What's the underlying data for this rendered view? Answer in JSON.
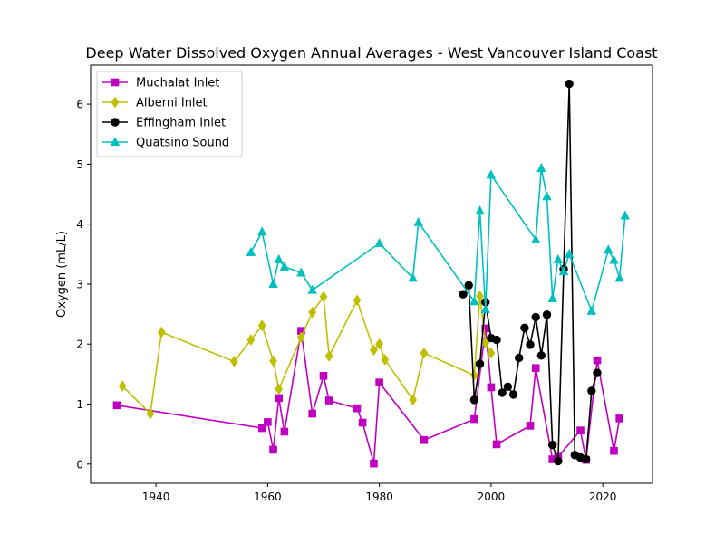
{
  "chart_data": {
    "type": "line",
    "title": "Deep Water Dissolved Oxygen Annual Averages - West Vancouver Island Coast",
    "xlabel": "",
    "ylabel": "Oxygen (mL/L)",
    "xlim": [
      1928.3,
      2028.9
    ],
    "ylim": [
      -0.32,
      6.65
    ],
    "xticks": [
      1940,
      1960,
      1980,
      2000,
      2020
    ],
    "yticks": [
      0,
      1,
      2,
      3,
      4,
      5,
      6
    ],
    "grid": false,
    "legend_position": "upper-left",
    "series": [
      {
        "name": "Muchalat Inlet",
        "color": "#bf00bf",
        "marker": "square",
        "x": [
          1933,
          1959,
          1960,
          1961,
          1962,
          1963,
          1966,
          1968,
          1970,
          1971,
          1976,
          1977,
          1979,
          1980,
          1988,
          1997,
          1999,
          2000,
          2001,
          2007,
          2008,
          2011,
          2012,
          2016,
          2017,
          2019,
          2022,
          2023
        ],
        "y": [
          0.98,
          0.6,
          0.7,
          0.24,
          1.1,
          0.54,
          2.22,
          0.84,
          1.47,
          1.06,
          0.93,
          0.69,
          0.01,
          1.36,
          0.4,
          0.75,
          2.26,
          1.28,
          0.33,
          0.64,
          1.6,
          0.08,
          0.12,
          0.56,
          0.07,
          1.73,
          0.22,
          0.76
        ]
      },
      {
        "name": "Alberni Inlet",
        "color": "#bfbf00",
        "marker": "diamond",
        "x": [
          1934,
          1939,
          1941,
          1954,
          1957,
          1959,
          1961,
          1962,
          1966,
          1968,
          1970,
          1971,
          1976,
          1979,
          1980,
          1981,
          1986,
          1988,
          1997,
          1998,
          1999,
          2000
        ],
        "y": [
          1.3,
          0.84,
          2.2,
          1.71,
          2.07,
          2.31,
          1.72,
          1.25,
          2.11,
          2.53,
          2.79,
          1.8,
          2.73,
          1.9,
          2.0,
          1.74,
          1.07,
          1.85,
          1.48,
          2.8,
          2.02,
          1.85
        ]
      },
      {
        "name": "Effingham Inlet",
        "color": "#000000",
        "marker": "circle",
        "x": [
          1995,
          1996,
          1997,
          1998,
          1999,
          2000,
          2001,
          2002,
          2003,
          2004,
          2005,
          2006,
          2007,
          2008,
          2009,
          2010,
          2011,
          2012,
          2013,
          2014,
          2015,
          2016,
          2017,
          2018,
          2019
        ],
        "y": [
          2.83,
          2.98,
          1.07,
          1.67,
          2.7,
          2.1,
          2.07,
          1.19,
          1.29,
          1.16,
          1.77,
          2.27,
          1.99,
          2.45,
          1.81,
          2.49,
          0.32,
          0.05,
          3.25,
          6.34,
          0.15,
          0.11,
          0.08,
          1.22,
          1.52
        ]
      },
      {
        "name": "Quatsino Sound",
        "color": "#00bfbf",
        "marker": "triangle",
        "x": [
          1957,
          1959,
          1961,
          1962,
          1963,
          1966,
          1968,
          1980,
          1986,
          1987,
          1997,
          1998,
          1999,
          2000,
          2008,
          2009,
          2010,
          2011,
          2012,
          2013,
          2014,
          2018,
          2021,
          2022,
          2023,
          2024
        ],
        "y": [
          3.53,
          3.87,
          3.0,
          3.41,
          3.29,
          3.19,
          2.9,
          3.68,
          3.1,
          4.03,
          2.71,
          4.22,
          2.58,
          4.82,
          3.74,
          4.93,
          4.46,
          2.76,
          3.41,
          3.21,
          3.5,
          2.55,
          3.57,
          3.4,
          3.1,
          4.14
        ]
      }
    ]
  }
}
